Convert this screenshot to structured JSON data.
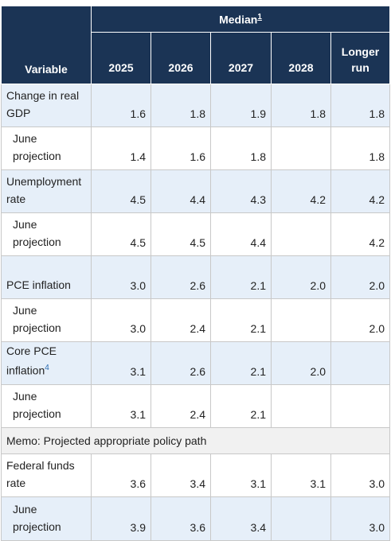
{
  "header": {
    "median_label": "Median",
    "median_note": "1",
    "variable_label": "Variable",
    "columns": [
      "2025",
      "2026",
      "2027",
      "2028",
      "Longer run"
    ]
  },
  "rows": [
    {
      "label": "Change in real GDP",
      "note": "",
      "sub": false,
      "values": [
        "1.6",
        "1.8",
        "1.9",
        "1.8",
        "1.8"
      ]
    },
    {
      "label": "June projection",
      "note": "",
      "sub": true,
      "values": [
        "1.4",
        "1.6",
        "1.8",
        "",
        "1.8"
      ]
    },
    {
      "label": "Unemployment rate",
      "note": "",
      "sub": false,
      "values": [
        "4.5",
        "4.4",
        "4.3",
        "4.2",
        "4.2"
      ]
    },
    {
      "label": "June projection",
      "note": "",
      "sub": true,
      "values": [
        "4.5",
        "4.5",
        "4.4",
        "",
        "4.2"
      ]
    },
    {
      "label": "PCE inflation",
      "note": "",
      "sub": false,
      "values": [
        "3.0",
        "2.6",
        "2.1",
        "2.0",
        "2.0"
      ]
    },
    {
      "label": "June projection",
      "note": "",
      "sub": true,
      "values": [
        "3.0",
        "2.4",
        "2.1",
        "",
        "2.0"
      ]
    },
    {
      "label": "Core PCE inflation",
      "note": "4",
      "sub": false,
      "values": [
        "3.1",
        "2.6",
        "2.1",
        "2.0",
        ""
      ]
    },
    {
      "label": "June projection",
      "note": "",
      "sub": true,
      "values": [
        "3.1",
        "2.4",
        "2.1",
        "",
        ""
      ]
    }
  ],
  "memo": "Memo: Projected appropriate policy path",
  "memo_rows": [
    {
      "label": "Federal funds rate",
      "note": "",
      "sub": false,
      "values": [
        "3.6",
        "3.4",
        "3.1",
        "3.1",
        "3.0"
      ]
    },
    {
      "label": "June projection",
      "note": "",
      "sub": true,
      "values": [
        "3.9",
        "3.6",
        "3.4",
        "",
        "3.0"
      ]
    }
  ],
  "colors": {
    "header_bg": "#1b3455",
    "shade_bg": "#e6eff9",
    "memo_bg": "#f1f1f1",
    "note_color": "#2b6cb0"
  }
}
